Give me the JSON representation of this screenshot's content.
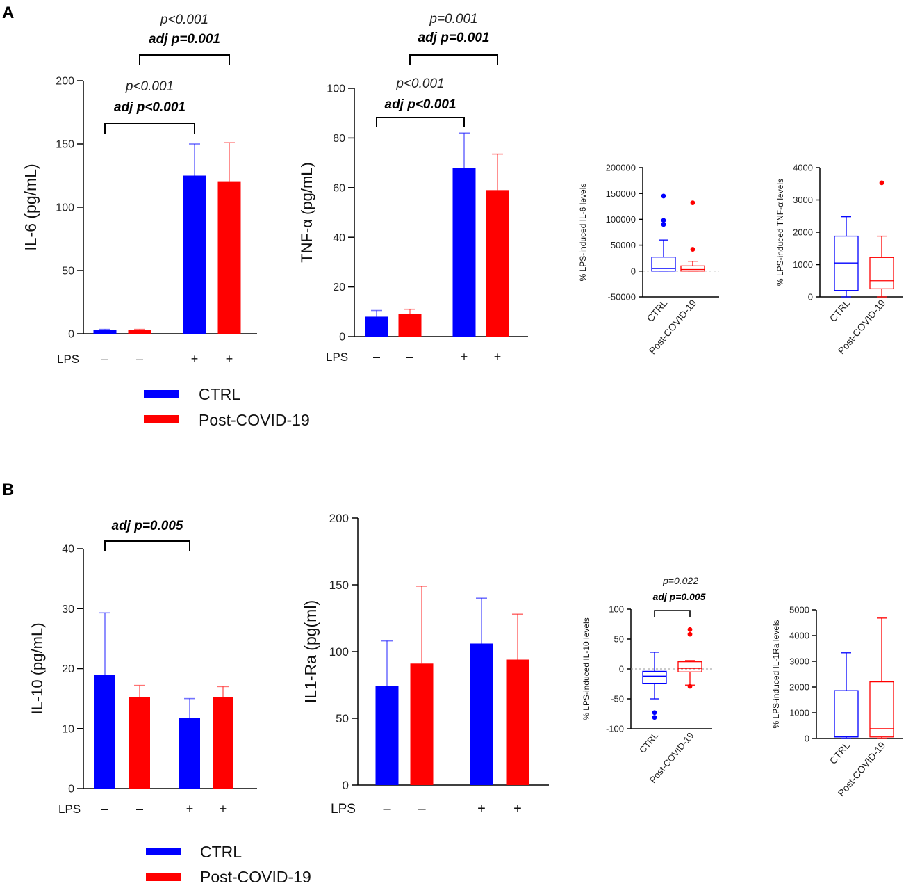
{
  "colors": {
    "ctrl": "#0000ff",
    "post": "#ff0000",
    "axis": "#000000"
  },
  "panel_letters": [
    "A",
    "B"
  ],
  "legend_A": {
    "ctrl": "CTRL",
    "post": "Post-COVID-19"
  },
  "legend_B": {
    "ctrl": "CTRL",
    "post": "Post-COVID-19"
  },
  "lps_label": "LPS",
  "lps_signs": [
    "–",
    "–",
    "+",
    "+"
  ],
  "chart_data": [
    {
      "id": "il6",
      "type": "bar",
      "ylabel": "IL-6 (pg/mL)",
      "ylim": [
        0,
        200
      ],
      "yticks": [
        "0",
        "50",
        "100",
        "150",
        "200"
      ],
      "lps": [
        "–",
        "–",
        "+",
        "+"
      ],
      "groups": [
        "CTRL",
        "Post-COVID-19",
        "CTRL",
        "Post-COVID-19"
      ],
      "values": [
        3,
        3,
        125,
        120
      ],
      "errors": [
        3.5,
        3.5,
        150,
        151
      ],
      "brackets": [
        {
          "from": 0,
          "to": 2,
          "p": "p<0.001",
          "adj": "adj p<0.001"
        },
        {
          "from": 1,
          "to": 3,
          "p": "p<0.001",
          "adj": "adj p=0.001"
        }
      ]
    },
    {
      "id": "tnf",
      "type": "bar",
      "ylabel": "TNF-α (pg/mL)",
      "ylim": [
        0,
        100
      ],
      "yticks": [
        "0",
        "20",
        "40",
        "60",
        "80",
        "100"
      ],
      "lps": [
        "–",
        "–",
        "+",
        "+"
      ],
      "groups": [
        "CTRL",
        "Post-COVID-19",
        "CTRL",
        "Post-COVID-19"
      ],
      "values": [
        8,
        9,
        68,
        59
      ],
      "errors": [
        10.5,
        11,
        82,
        73.5
      ],
      "brackets": [
        {
          "from": 0,
          "to": 2,
          "p": "p<0.001",
          "adj": "adj p<0.001"
        },
        {
          "from": 1,
          "to": 3,
          "p": "p=0.001",
          "adj": "adj p=0.001"
        }
      ]
    },
    {
      "id": "il6_box",
      "type": "box",
      "ylabel": "% LPS-induced IL-6 levels",
      "ylim": [
        -50000,
        200000
      ],
      "yticks": [
        "-50000",
        "0",
        "50000",
        "100000",
        "150000",
        "200000"
      ],
      "categories": [
        "CTRL",
        "Post-COVID-19"
      ],
      "boxes": [
        {
          "whisker_low": 0,
          "q1": 0,
          "median": 5000,
          "q3": 27000,
          "whisker_high": 60000,
          "outliers": [
            90000,
            98000,
            145000
          ]
        },
        {
          "whisker_low": 0,
          "q1": 0,
          "median": 3000,
          "q3": 10000,
          "whisker_high": 19000,
          "outliers": [
            42000,
            132000
          ]
        }
      ]
    },
    {
      "id": "tnf_box",
      "type": "box",
      "ylabel": "% LPS-induced TNF-α levels",
      "ylim": [
        0,
        4000
      ],
      "yticks": [
        "0",
        "1000",
        "2000",
        "3000",
        "4000"
      ],
      "categories": [
        "CTRL",
        "Post-COVID-19"
      ],
      "boxes": [
        {
          "whisker_low": 0,
          "q1": 200,
          "median": 1050,
          "q3": 1880,
          "whisker_high": 2480,
          "outliers": []
        },
        {
          "whisker_low": 0,
          "q1": 250,
          "median": 500,
          "q3": 1220,
          "whisker_high": 1880,
          "outliers": [
            3530
          ]
        }
      ]
    },
    {
      "id": "il10",
      "type": "bar",
      "ylabel": "IL-10 (pg/mL)",
      "ylim": [
        0,
        40
      ],
      "yticks": [
        "0",
        "10",
        "20",
        "30",
        "40"
      ],
      "lps": [
        "–",
        "–",
        "+",
        "+"
      ],
      "groups": [
        "CTRL",
        "Post-COVID-19",
        "CTRL",
        "Post-COVID-19"
      ],
      "values": [
        19,
        15.3,
        11.8,
        15.2
      ],
      "errors": [
        29.3,
        17.2,
        15,
        17
      ],
      "brackets": [
        {
          "from": 0,
          "to": 2,
          "p": "",
          "adj": "adj p=0.005"
        }
      ]
    },
    {
      "id": "il1ra",
      "type": "bar",
      "ylabel": "IL1-Ra (pg(ml)",
      "ylim": [
        0,
        200
      ],
      "yticks": [
        "0",
        "50",
        "100",
        "150",
        "200"
      ],
      "lps": [
        "–",
        "–",
        "+",
        "+"
      ],
      "groups": [
        "CTRL",
        "Post-COVID-19",
        "CTRL",
        "Post-COVID-19"
      ],
      "values": [
        74,
        91,
        106,
        94
      ],
      "errors": [
        108,
        149,
        140,
        128
      ],
      "brackets": []
    },
    {
      "id": "il10_box",
      "type": "box",
      "ylabel": "% LPS-induced IL-10 levels",
      "ylim": [
        -100,
        100
      ],
      "yticks": [
        "-100",
        "-50",
        "0",
        "50",
        "100"
      ],
      "categories": [
        "CTRL",
        "Post-COVID-19"
      ],
      "boxes": [
        {
          "whisker_low": -50,
          "q1": -24,
          "median": -12,
          "q3": -4,
          "whisker_high": 28,
          "outliers": [
            -73,
            -81
          ]
        },
        {
          "whisker_low": -27,
          "q1": -5,
          "median": 1,
          "q3": 12,
          "whisker_high": 14,
          "outliers": [
            58,
            66,
            -29
          ]
        }
      ],
      "bracket": {
        "p": "p=0.022",
        "adj": "adj p=0.005"
      }
    },
    {
      "id": "il1ra_box",
      "type": "box",
      "ylabel": "% LPS-induced IL-1Ra levels",
      "ylim": [
        0,
        5000
      ],
      "yticks": [
        "0",
        "1000",
        "2000",
        "3000",
        "4000",
        "5000"
      ],
      "categories": [
        "CTRL",
        "Post-COVID-19"
      ],
      "boxes": [
        {
          "whisker_low": 0,
          "q1": 60,
          "median": 60,
          "q3": 1860,
          "whisker_high": 3330,
          "outliers": []
        },
        {
          "whisker_low": 0,
          "q1": 60,
          "median": 380,
          "q3": 2200,
          "whisker_high": 4680,
          "outliers": []
        }
      ]
    }
  ]
}
